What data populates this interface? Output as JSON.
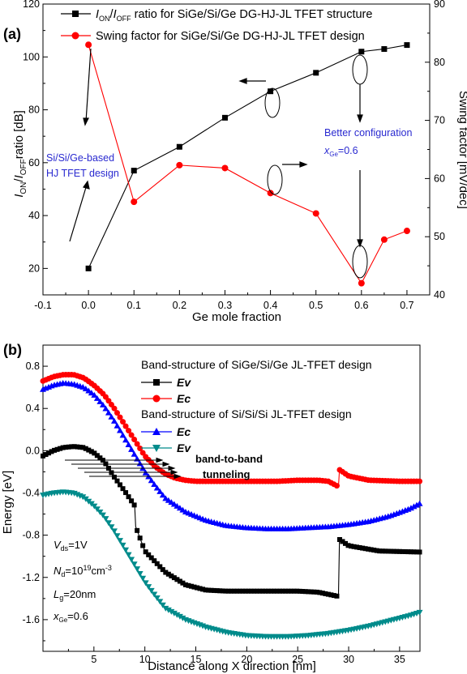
{
  "chart_data": [
    {
      "panel_label": "(a)",
      "type": "line",
      "xlabel": "Ge mole fraction",
      "ylabel_left": "I_ON/I_OFF ratio [dB]",
      "ylabel_right": "Swing factor [mV/dec]",
      "xlim": [
        -0.1,
        0.75
      ],
      "ylim_left": [
        10,
        120
      ],
      "ylim_right": [
        40,
        90
      ],
      "x_ticks": [
        "-0.1",
        "0.0",
        "0.1",
        "0.2",
        "0.3",
        "0.4",
        "0.5",
        "0.6",
        "0.7"
      ],
      "y_ticks_left": [
        "20",
        "40",
        "60",
        "80",
        "100",
        "120"
      ],
      "y_ticks_right": [
        "40",
        "50",
        "60",
        "70",
        "80",
        "90"
      ],
      "legend_placement": "top",
      "series": [
        {
          "name": "I_ON/I_OFF ratio for SiGe/Si/Ge DG-HJ-JL TFET structure",
          "axis": "left",
          "color": "#000000",
          "marker": "square",
          "x": [
            0.0,
            0.1,
            0.2,
            0.3,
            0.4,
            0.5,
            0.6,
            0.65,
            0.7
          ],
          "y": [
            20,
            57,
            66,
            77,
            87,
            94,
            102,
            103,
            104.5
          ]
        },
        {
          "name": "Swing factor for SiGe/Si/Ge DG-HJ-JL TFET design",
          "axis": "right",
          "color": "#ff0000",
          "marker": "circle",
          "x": [
            0.0,
            0.1,
            0.2,
            0.3,
            0.4,
            0.5,
            0.6,
            0.65,
            0.7
          ],
          "y": [
            83,
            56,
            62.3,
            61.8,
            57.5,
            54,
            42,
            49.5,
            51
          ]
        }
      ],
      "annotations": {
        "si_based_line1": "Si/Si/Ge-based",
        "si_based_line2": "HJ TFET design",
        "better_line1": "Better configuration",
        "better_xge": "=0.6"
      }
    },
    {
      "panel_label": "(b)",
      "type": "line",
      "xlabel": "Distance along X direction [nm]",
      "ylabel": "Energy [eV]",
      "xlim": [
        0,
        37
      ],
      "ylim": [
        -1.9,
        1.0
      ],
      "x_ticks": [
        "5",
        "10",
        "15",
        "20",
        "25",
        "30",
        "35"
      ],
      "y_ticks": [
        "0.8",
        "0.4",
        "0.0",
        "-0.4",
        "-0.8",
        "-1.2",
        "-1.6"
      ],
      "legend_placement": "top-right",
      "legend_group_1": "Band-structure of SiGe/Si/Ge JL-TFET design",
      "legend_group_2": "Band-structure of Si/Si/Si JL-TFET design",
      "series": [
        {
          "name": "Ev",
          "group": 1,
          "color": "#000000",
          "marker": "square",
          "x": [
            0,
            1,
            2,
            3,
            4,
            5,
            6,
            7,
            8,
            9,
            9.1,
            10,
            12,
            14,
            16,
            18,
            20,
            22,
            25,
            27,
            28,
            29,
            29.1,
            30,
            33,
            37
          ],
          "y": [
            -0.05,
            0.0,
            0.03,
            0.04,
            0.03,
            -0.02,
            -0.1,
            -0.25,
            -0.38,
            -0.52,
            -0.72,
            -0.95,
            -1.15,
            -1.27,
            -1.32,
            -1.33,
            -1.33,
            -1.33,
            -1.33,
            -1.34,
            -1.36,
            -1.38,
            -0.84,
            -0.9,
            -0.95,
            -0.96
          ]
        },
        {
          "name": "Ec",
          "group": 1,
          "color": "#ff0000",
          "marker": "circle",
          "x": [
            0,
            1,
            2,
            3,
            4,
            5,
            6,
            7,
            8,
            9,
            10,
            11,
            12,
            13,
            14,
            15,
            17,
            20,
            23,
            25,
            27,
            28,
            29,
            29.1,
            30,
            32,
            35,
            37
          ],
          "y": [
            0.66,
            0.7,
            0.72,
            0.72,
            0.69,
            0.62,
            0.53,
            0.4,
            0.25,
            0.1,
            -0.05,
            -0.15,
            -0.22,
            -0.26,
            -0.28,
            -0.29,
            -0.29,
            -0.29,
            -0.29,
            -0.28,
            -0.28,
            -0.29,
            -0.34,
            -0.18,
            -0.24,
            -0.28,
            -0.29,
            -0.29
          ]
        },
        {
          "name": "Ec",
          "group": 2,
          "color": "#0000ff",
          "marker": "triangle-up",
          "x": [
            0,
            1,
            2,
            3,
            4,
            5,
            6,
            7,
            8,
            9,
            10,
            11,
            12,
            14,
            16,
            18,
            20,
            22,
            24,
            26,
            28,
            30,
            32,
            34,
            36,
            37
          ],
          "y": [
            0.58,
            0.62,
            0.64,
            0.63,
            0.6,
            0.53,
            0.42,
            0.28,
            0.12,
            -0.04,
            -0.2,
            -0.33,
            -0.45,
            -0.58,
            -0.66,
            -0.71,
            -0.73,
            -0.74,
            -0.74,
            -0.73,
            -0.72,
            -0.7,
            -0.67,
            -0.62,
            -0.55,
            -0.5
          ]
        },
        {
          "name": "Ev",
          "group": 2,
          "color": "#008b8b",
          "marker": "triangle-down",
          "x": [
            0,
            1,
            2,
            3,
            4,
            5,
            6,
            7,
            8,
            9,
            10,
            11,
            12,
            14,
            16,
            18,
            20,
            22,
            24,
            26,
            28,
            30,
            32,
            34,
            36,
            37
          ],
          "y": [
            -0.42,
            -0.4,
            -0.39,
            -0.4,
            -0.44,
            -0.52,
            -0.62,
            -0.76,
            -0.92,
            -1.08,
            -1.24,
            -1.37,
            -1.49,
            -1.6,
            -1.67,
            -1.72,
            -1.75,
            -1.76,
            -1.76,
            -1.75,
            -1.73,
            -1.7,
            -1.66,
            -1.61,
            -1.56,
            -1.53
          ]
        }
      ],
      "annotations": {
        "btb_line1": "band-to-band",
        "btb_line2": "tunneling",
        "vds": "=1V",
        "nd_a": "=10",
        "nd_b": "cm",
        "lg": "=20nm",
        "xge": "=0.6"
      }
    }
  ]
}
